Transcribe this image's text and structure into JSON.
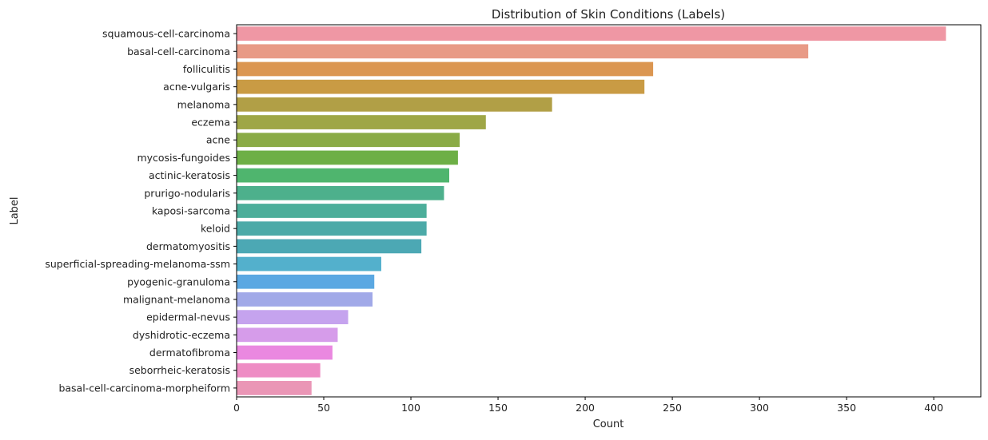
{
  "chart_data": {
    "type": "bar",
    "orientation": "horizontal",
    "title": "Distribution of Skin Conditions (Labels)",
    "xlabel": "Count",
    "ylabel": "Label",
    "xlim": [
      0,
      427
    ],
    "xticks": [
      0,
      50,
      100,
      150,
      200,
      250,
      300,
      350,
      400
    ],
    "grid": false,
    "categories": [
      "squamous-cell-carcinoma",
      "basal-cell-carcinoma",
      "folliculitis",
      "acne-vulgaris",
      "melanoma",
      "eczema",
      "acne",
      "mycosis-fungoides",
      "actinic-keratosis",
      "prurigo-nodularis",
      "kaposi-sarcoma",
      "keloid",
      "dermatomyositis",
      "superficial-spreading-melanoma-ssm",
      "pyogenic-granuloma",
      "malignant-melanoma",
      "epidermal-nevus",
      "dyshidrotic-eczema",
      "dermatofibroma",
      "seborrheic-keratosis",
      "basal-cell-carcinoma-morpheiform"
    ],
    "values": [
      407,
      328,
      239,
      234,
      181,
      143,
      128,
      127,
      122,
      119,
      109,
      109,
      106,
      83,
      79,
      78,
      64,
      58,
      55,
      48,
      43
    ],
    "colors": [
      "#ef97a4",
      "#e89a86",
      "#db9651",
      "#c99b44",
      "#b19f46",
      "#9fa646",
      "#8aab46",
      "#6daf46",
      "#4fb56e",
      "#4db08c",
      "#4cae9a",
      "#4caaa8",
      "#4ca8b4",
      "#53b0cc",
      "#5ba8e2",
      "#a1a9e8",
      "#c5a3ee",
      "#d69cea",
      "#ea88e0",
      "#ee8cc4",
      "#ea96b6"
    ]
  }
}
